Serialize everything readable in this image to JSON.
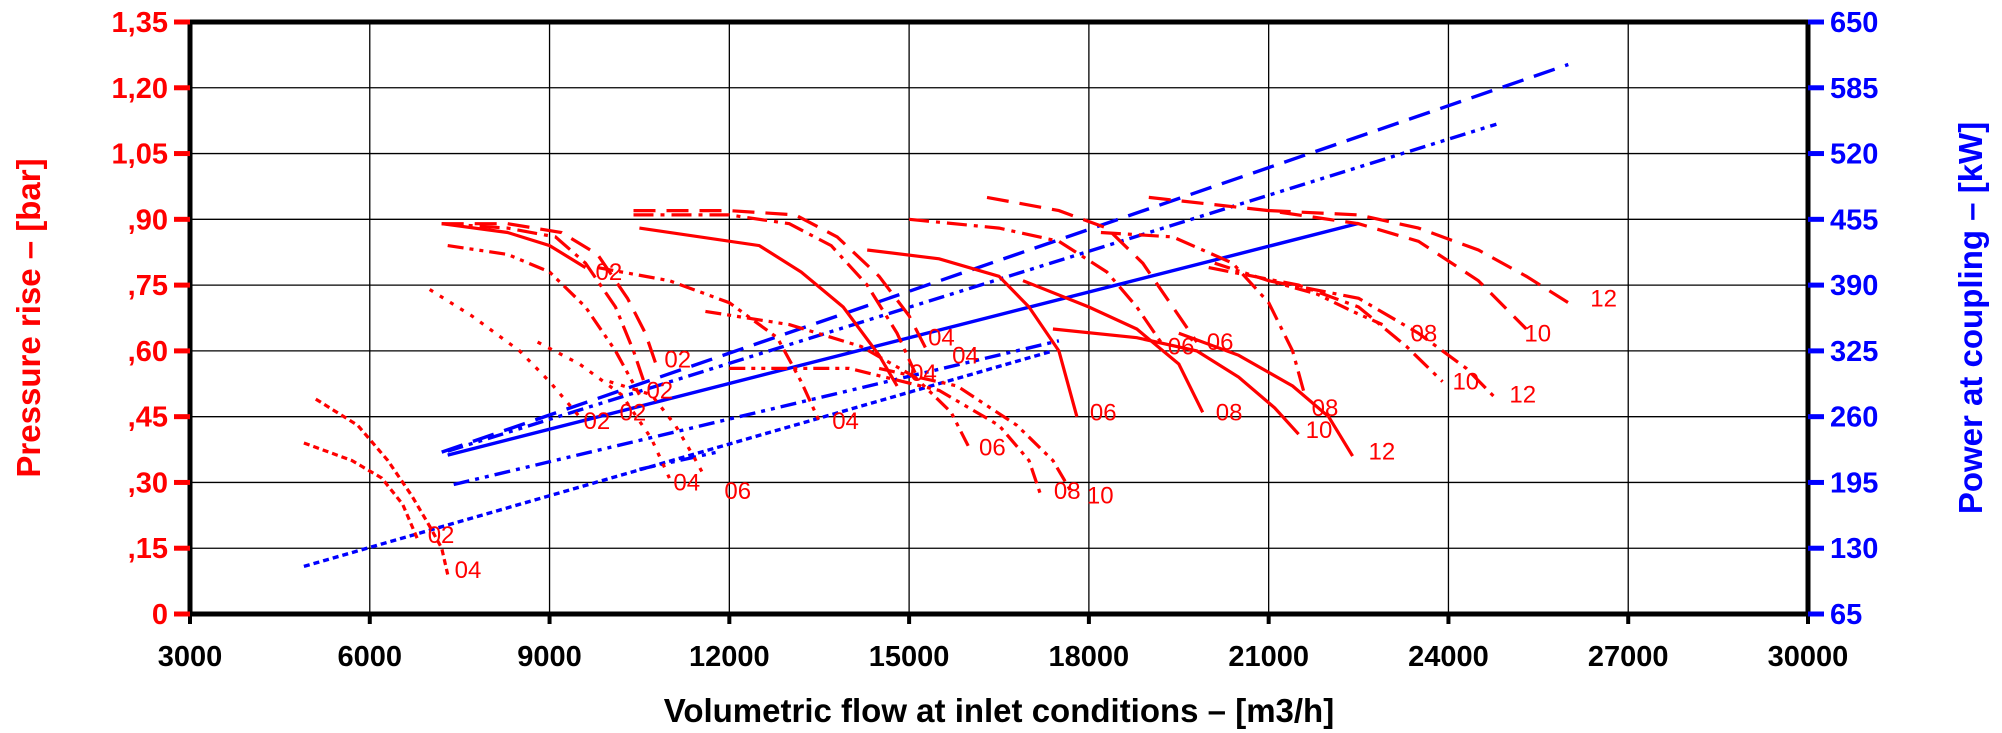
{
  "chart_data": {
    "type": "line",
    "xlabel": "Volumetric flow at inlet conditions – [m3/h]",
    "ylabel_left": "Pressure rise – [bar]",
    "ylabel_right": "Power at coupling – [kW]",
    "xlim": [
      3000,
      30000
    ],
    "ylim_left": [
      0,
      1.35
    ],
    "ylim_right": [
      65,
      650
    ],
    "grid": true,
    "x_ticks": [
      {
        "value": 3000,
        "label": "3000"
      },
      {
        "value": 6000,
        "label": "6000"
      },
      {
        "value": 9000,
        "label": "9000"
      },
      {
        "value": 12000,
        "label": "12000"
      },
      {
        "value": 15000,
        "label": "15000"
      },
      {
        "value": 18000,
        "label": "18000"
      },
      {
        "value": 21000,
        "label": "21000"
      },
      {
        "value": 24000,
        "label": "24000"
      },
      {
        "value": 27000,
        "label": "27000"
      },
      {
        "value": 30000,
        "label": "30000"
      }
    ],
    "y_left_ticks": [
      {
        "value": 0,
        "label": "0"
      },
      {
        "value": 0.15,
        "label": ",15"
      },
      {
        "value": 0.3,
        "label": ",30"
      },
      {
        "value": 0.45,
        "label": ",45"
      },
      {
        "value": 0.6,
        "label": ",60"
      },
      {
        "value": 0.75,
        "label": ",75"
      },
      {
        "value": 0.9,
        "label": ",90"
      },
      {
        "value": 1.05,
        "label": "1,05"
      },
      {
        "value": 1.2,
        "label": "1,20"
      },
      {
        "value": 1.35,
        "label": "1,35"
      }
    ],
    "y_right_ticks": [
      {
        "value": 65,
        "label": "65"
      },
      {
        "value": 130,
        "label": "130"
      },
      {
        "value": 195,
        "label": "195"
      },
      {
        "value": 260,
        "label": "260"
      },
      {
        "value": 325,
        "label": "325"
      },
      {
        "value": 390,
        "label": "390"
      },
      {
        "value": 455,
        "label": "455"
      },
      {
        "value": 520,
        "label": "520"
      },
      {
        "value": 585,
        "label": "585"
      },
      {
        "value": 650,
        "label": "650"
      }
    ],
    "colors": {
      "pressure": "#ff0000",
      "power": "#0000ff",
      "grid": "#000000",
      "frame": "#000000"
    },
    "pressure_curves": [
      {
        "dash": "dotted-dense",
        "points": [
          [
            5100,
            0.49
          ],
          [
            5800,
            0.43
          ],
          [
            6300,
            0.35
          ],
          [
            6700,
            0.27
          ],
          [
            7000,
            0.2
          ],
          [
            7200,
            0.15
          ],
          [
            7300,
            0.09
          ]
        ],
        "label": "04",
        "label_at": [
          7350,
          0.1
        ]
      },
      {
        "dash": "dotted-dense",
        "points": [
          [
            4900,
            0.39
          ],
          [
            5700,
            0.35
          ],
          [
            6200,
            0.31
          ],
          [
            6550,
            0.25
          ],
          [
            6800,
            0.17
          ]
        ],
        "label": "02",
        "label_at": [
          6900,
          0.18
        ]
      },
      {
        "dash": "dotted-sparse",
        "points": [
          [
            7000,
            0.74
          ],
          [
            7700,
            0.68
          ],
          [
            8500,
            0.6
          ],
          [
            9000,
            0.53
          ],
          [
            9500,
            0.45
          ]
        ],
        "label": "02",
        "label_at": [
          9500,
          0.44
        ]
      },
      {
        "dash": "dotted-sparse",
        "points": [
          [
            8800,
            0.62
          ],
          [
            9500,
            0.57
          ],
          [
            10200,
            0.5
          ],
          [
            10700,
            0.4
          ],
          [
            11000,
            0.31
          ]
        ],
        "label": "04",
        "label_at": [
          11000,
          0.3
        ]
      },
      {
        "dash": "dotted-sparse",
        "points": [
          [
            10000,
            0.53
          ],
          [
            10700,
            0.5
          ],
          [
            11100,
            0.43
          ],
          [
            11400,
            0.36
          ],
          [
            11600,
            0.31
          ]
        ],
        "label": "06",
        "label_at": [
          11850,
          0.28
        ]
      },
      {
        "dash": "dash-dot-dot",
        "points": [
          [
            7300,
            0.84
          ],
          [
            8300,
            0.82
          ],
          [
            9000,
            0.78
          ],
          [
            9600,
            0.7
          ],
          [
            10100,
            0.6
          ],
          [
            10500,
            0.5
          ]
        ],
        "label": "02",
        "label_at": [
          10100,
          0.46
        ]
      },
      {
        "dash": "dash-dot",
        "points": [
          [
            7200,
            0.89
          ],
          [
            8300,
            0.88
          ],
          [
            9100,
            0.86
          ],
          [
            9600,
            0.8
          ],
          [
            10100,
            0.7
          ],
          [
            10400,
            0.6
          ],
          [
            10600,
            0.52
          ]
        ],
        "label": "02",
        "label_at": [
          10550,
          0.51
        ]
      },
      {
        "dash": "dashed",
        "points": [
          [
            7200,
            0.89
          ],
          [
            8300,
            0.89
          ],
          [
            9200,
            0.87
          ],
          [
            9800,
            0.82
          ],
          [
            10300,
            0.72
          ],
          [
            10600,
            0.64
          ],
          [
            10800,
            0.56
          ]
        ],
        "label": "02",
        "label_at": [
          10850,
          0.58
        ]
      },
      {
        "dash": "solid",
        "points": [
          [
            7200,
            0.89
          ],
          [
            8300,
            0.87
          ],
          [
            9000,
            0.84
          ],
          [
            9600,
            0.79
          ]
        ],
        "label": "02",
        "label_at": [
          9700,
          0.78
        ]
      },
      {
        "dash": "dash-dot-dot",
        "points": [
          [
            9800,
            0.79
          ],
          [
            11000,
            0.76
          ],
          [
            12000,
            0.71
          ],
          [
            12800,
            0.63
          ],
          [
            13200,
            0.53
          ],
          [
            13500,
            0.44
          ]
        ],
        "label": "04",
        "label_at": [
          13650,
          0.44
        ]
      },
      {
        "dash": "dash-dot-dot",
        "points": [
          [
            11600,
            0.69
          ],
          [
            13000,
            0.66
          ],
          [
            14200,
            0.61
          ],
          [
            15100,
            0.54
          ],
          [
            15700,
            0.46
          ],
          [
            16000,
            0.38
          ]
        ],
        "label": "06",
        "label_at": [
          16100,
          0.38
        ]
      },
      {
        "dash": "dash-dot-dot",
        "points": [
          [
            12000,
            0.56
          ],
          [
            14000,
            0.56
          ],
          [
            15500,
            0.51
          ],
          [
            16500,
            0.43
          ],
          [
            17000,
            0.35
          ],
          [
            17200,
            0.27
          ]
        ],
        "label": "08",
        "label_at": [
          17350,
          0.28
        ]
      },
      {
        "dash": "dash-dot-dot",
        "points": [
          [
            14500,
            0.56
          ],
          [
            15800,
            0.52
          ],
          [
            16800,
            0.43
          ],
          [
            17400,
            0.35
          ],
          [
            17700,
            0.28
          ]
        ],
        "label": "10",
        "label_at": [
          17900,
          0.27
        ]
      },
      {
        "dash": "dash-dot",
        "points": [
          [
            10400,
            0.91
          ],
          [
            12000,
            0.91
          ],
          [
            13000,
            0.89
          ],
          [
            13700,
            0.84
          ],
          [
            14300,
            0.75
          ],
          [
            14800,
            0.64
          ],
          [
            15100,
            0.55
          ]
        ],
        "label": "04",
        "label_at": [
          15250,
          0.63
        ]
      },
      {
        "dash": "dashed",
        "points": [
          [
            10400,
            0.92
          ],
          [
            12000,
            0.92
          ],
          [
            13100,
            0.91
          ],
          [
            13800,
            0.86
          ],
          [
            14500,
            0.77
          ],
          [
            15000,
            0.68
          ],
          [
            15300,
            0.6
          ]
        ],
        "label": "04",
        "label_at": [
          15650,
          0.59
        ]
      },
      {
        "dash": "solid",
        "points": [
          [
            10500,
            0.88
          ],
          [
            12500,
            0.84
          ],
          [
            13200,
            0.78
          ],
          [
            13900,
            0.7
          ],
          [
            14500,
            0.59
          ],
          [
            14800,
            0.52
          ]
        ],
        "label": "04",
        "label_at": [
          14950,
          0.55
        ]
      },
      {
        "dash": "solid",
        "points": [
          [
            14300,
            0.83
          ],
          [
            15500,
            0.81
          ],
          [
            16500,
            0.77
          ],
          [
            17000,
            0.7
          ],
          [
            17500,
            0.6
          ],
          [
            17800,
            0.45
          ]
        ],
        "label": "06",
        "label_at": [
          17950,
          0.46
        ]
      },
      {
        "dash": "solid",
        "points": [
          [
            16900,
            0.76
          ],
          [
            18000,
            0.7
          ],
          [
            18800,
            0.65
          ],
          [
            19500,
            0.57
          ],
          [
            19900,
            0.46
          ]
        ],
        "label": "08",
        "label_at": [
          20050,
          0.46
        ]
      },
      {
        "dash": "solid",
        "points": [
          [
            17400,
            0.65
          ],
          [
            18800,
            0.63
          ],
          [
            19800,
            0.6
          ],
          [
            20500,
            0.54
          ],
          [
            21100,
            0.47
          ],
          [
            21500,
            0.41
          ]
        ],
        "label": "10",
        "label_at": [
          21550,
          0.42
        ]
      },
      {
        "dash": "solid",
        "points": [
          [
            19500,
            0.64
          ],
          [
            20500,
            0.59
          ],
          [
            21400,
            0.52
          ],
          [
            22000,
            0.45
          ],
          [
            22400,
            0.36
          ]
        ],
        "label": "12",
        "label_at": [
          22600,
          0.37
        ]
      },
      {
        "dash": "dash-dot",
        "points": [
          [
            15000,
            0.9
          ],
          [
            16500,
            0.88
          ],
          [
            17500,
            0.85
          ],
          [
            18300,
            0.78
          ],
          [
            18800,
            0.7
          ],
          [
            19200,
            0.62
          ]
        ],
        "label": "06",
        "label_at": [
          19250,
          0.61
        ]
      },
      {
        "dash": "dashed",
        "points": [
          [
            16300,
            0.95
          ],
          [
            17500,
            0.92
          ],
          [
            18300,
            0.88
          ],
          [
            18900,
            0.8
          ],
          [
            19400,
            0.7
          ],
          [
            19800,
            0.62
          ]
        ],
        "label": "06",
        "label_at": [
          19900,
          0.62
        ]
      },
      {
        "dash": "dash-dot",
        "points": [
          [
            18200,
            0.87
          ],
          [
            19400,
            0.86
          ],
          [
            20400,
            0.8
          ],
          [
            21000,
            0.71
          ],
          [
            21400,
            0.6
          ],
          [
            21600,
            0.5
          ]
        ],
        "label": "08",
        "label_at": [
          21650,
          0.47
        ]
      },
      {
        "dash": "dash-dot-dot",
        "points": [
          [
            20100,
            0.8
          ],
          [
            21000,
            0.76
          ],
          [
            21800,
            0.73
          ],
          [
            22400,
            0.69
          ],
          [
            22900,
            0.66
          ]
        ],
        "label": "08",
        "label_at": [
          23300,
          0.64
        ]
      },
      {
        "dash": "dash-dot",
        "points": [
          [
            20000,
            0.79
          ],
          [
            21500,
            0.75
          ],
          [
            22500,
            0.7
          ],
          [
            23300,
            0.61
          ],
          [
            23900,
            0.53
          ]
        ],
        "label": "10",
        "label_at": [
          24000,
          0.53
        ]
      },
      {
        "dash": "dash-dot",
        "points": [
          [
            21000,
            0.76
          ],
          [
            22500,
            0.72
          ],
          [
            23500,
            0.64
          ],
          [
            24300,
            0.56
          ],
          [
            24800,
            0.49
          ]
        ],
        "label": "12",
        "label_at": [
          24950,
          0.5
        ]
      },
      {
        "dash": "dashed",
        "points": [
          [
            19000,
            0.95
          ],
          [
            21000,
            0.92
          ],
          [
            22500,
            0.89
          ],
          [
            23500,
            0.85
          ],
          [
            24500,
            0.76
          ],
          [
            25300,
            0.65
          ]
        ],
        "label": "10",
        "label_at": [
          25200,
          0.64
        ]
      },
      {
        "dash": "dashed",
        "points": [
          [
            21000,
            0.92
          ],
          [
            22500,
            0.91
          ],
          [
            23500,
            0.88
          ],
          [
            24500,
            0.83
          ],
          [
            25300,
            0.77
          ],
          [
            26000,
            0.71
          ]
        ],
        "label": "12",
        "label_at": [
          26300,
          0.72
        ]
      }
    ],
    "power_curves": [
      {
        "dash": "dashed",
        "points": [
          [
            7200,
            225
          ],
          [
            26000,
            608
          ]
        ]
      },
      {
        "dash": "solid",
        "points": [
          [
            7300,
            222
          ],
          [
            22500,
            451
          ]
        ]
      },
      {
        "dash": "dash-dot-dot",
        "points": [
          [
            7300,
            226
          ],
          [
            24800,
            549
          ]
        ]
      },
      {
        "dash": "dash-dot-dot",
        "points": [
          [
            7400,
            193
          ],
          [
            17500,
            335
          ]
        ]
      },
      {
        "dash": "dotted-dense",
        "points": [
          [
            4900,
            112
          ],
          [
            17400,
            325
          ]
        ]
      },
      {
        "dash": "dash-dot-dot",
        "points": [
          [
            10500,
            208
          ],
          [
            11800,
            225
          ]
        ]
      }
    ]
  }
}
